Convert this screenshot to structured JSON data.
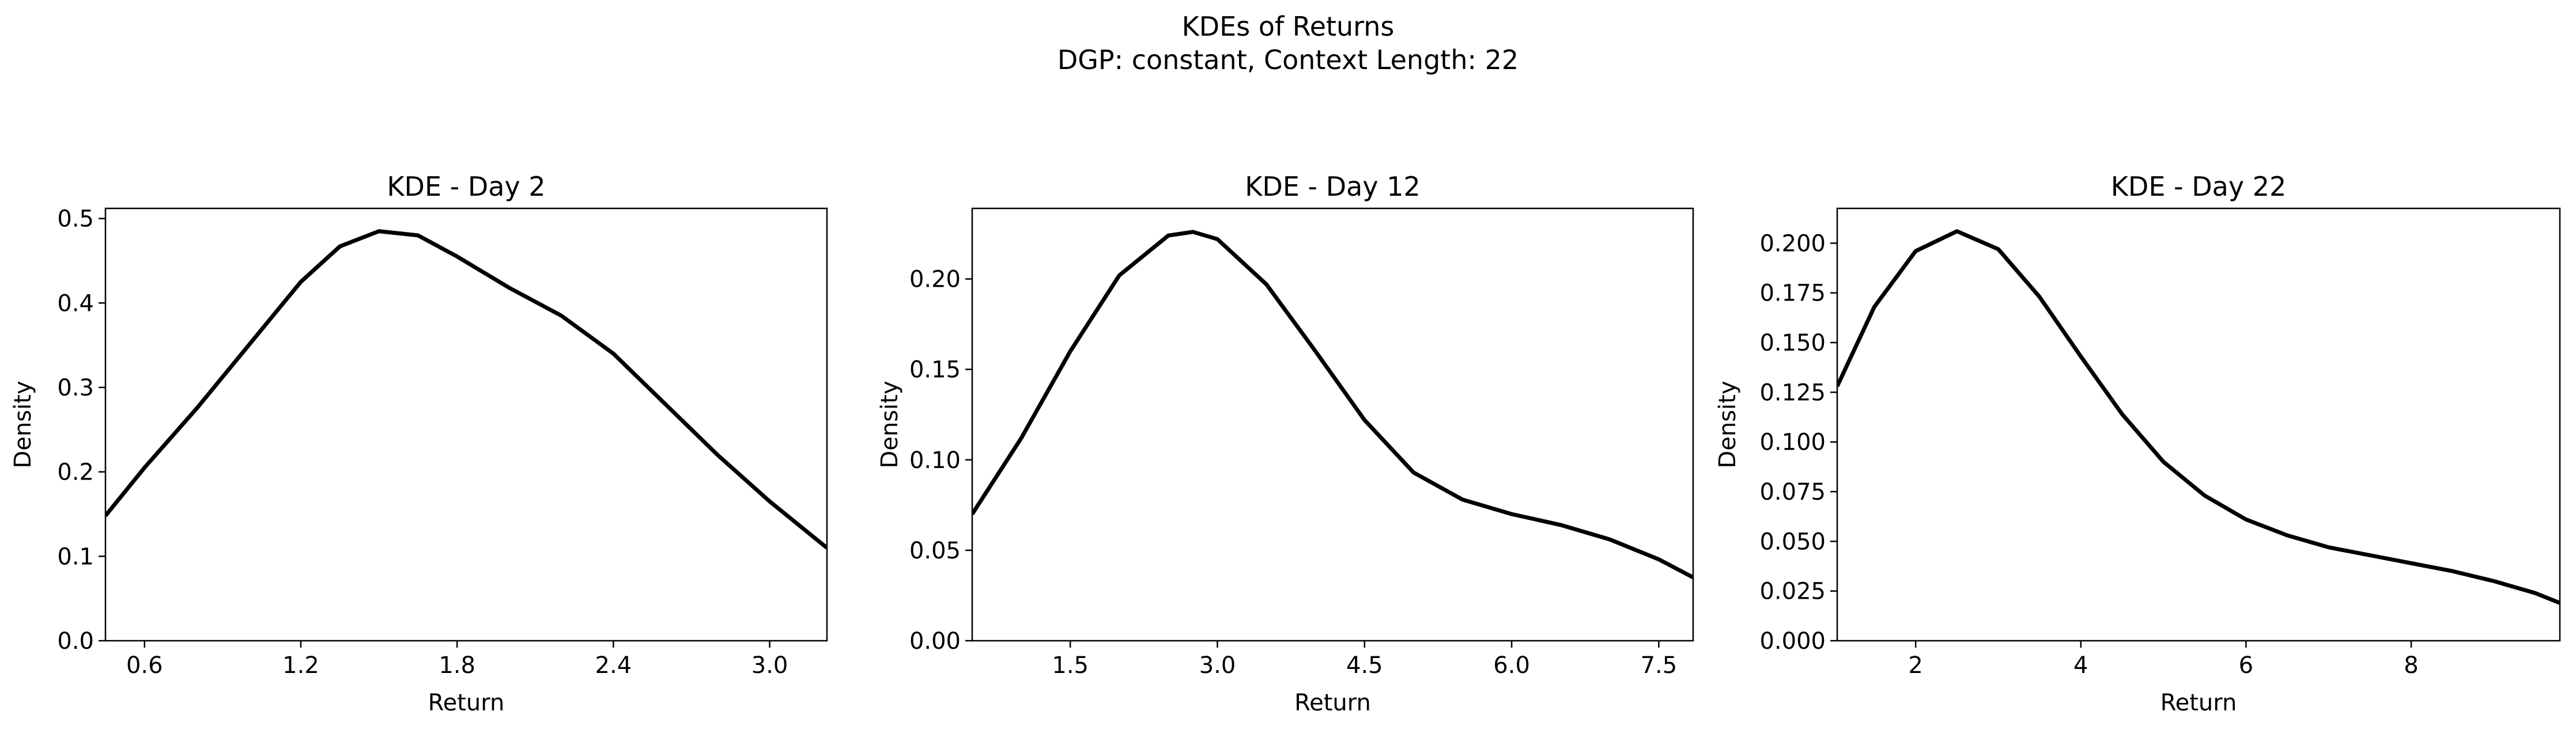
{
  "figure": {
    "title_line1": "KDEs of Returns",
    "title_line2": "DGP: constant, Context Length: 22"
  },
  "colors": {
    "line": "#000000",
    "background": "#ffffff",
    "axes": "#000000"
  },
  "chart_data": [
    {
      "type": "line",
      "title": "KDE - Day 2",
      "xlabel": "Return",
      "ylabel": "Density",
      "xlim": [
        0.45,
        3.22
      ],
      "ylim": [
        0.0,
        0.512
      ],
      "xticks": [
        0.6,
        1.2,
        1.8,
        2.4,
        3.0
      ],
      "xtick_labels": [
        "0.6",
        "1.2",
        "1.8",
        "2.4",
        "3.0"
      ],
      "yticks": [
        0.0,
        0.1,
        0.2,
        0.3,
        0.4,
        0.5
      ],
      "ytick_labels": [
        "0.0",
        "0.1",
        "0.2",
        "0.3",
        "0.4",
        "0.5"
      ],
      "grid": false,
      "series": [
        {
          "x": [
            0.45,
            0.6,
            0.8,
            1.0,
            1.2,
            1.35,
            1.5,
            1.65,
            1.8,
            2.0,
            2.2,
            2.4,
            2.6,
            2.8,
            3.0,
            3.22
          ],
          "y": [
            0.148,
            0.205,
            0.275,
            0.35,
            0.425,
            0.467,
            0.485,
            0.48,
            0.455,
            0.418,
            0.385,
            0.34,
            0.28,
            0.22,
            0.165,
            0.11
          ]
        }
      ]
    },
    {
      "type": "line",
      "title": "KDE - Day 12",
      "xlabel": "Return",
      "ylabel": "Density",
      "xlim": [
        0.5,
        7.85
      ],
      "ylim": [
        0.0,
        0.239
      ],
      "xticks": [
        1.5,
        3.0,
        4.5,
        6.0,
        7.5
      ],
      "xtick_labels": [
        "1.5",
        "3.0",
        "4.5",
        "6.0",
        "7.5"
      ],
      "yticks": [
        0.0,
        0.05,
        0.1,
        0.15,
        0.2
      ],
      "ytick_labels": [
        "0.00",
        "0.05",
        "0.10",
        "0.15",
        "0.20"
      ],
      "grid": false,
      "series": [
        {
          "x": [
            0.5,
            1.0,
            1.5,
            2.0,
            2.5,
            2.75,
            3.0,
            3.5,
            4.0,
            4.5,
            5.0,
            5.5,
            6.0,
            6.5,
            7.0,
            7.5,
            7.85
          ],
          "y": [
            0.07,
            0.112,
            0.16,
            0.202,
            0.224,
            0.226,
            0.222,
            0.197,
            0.16,
            0.122,
            0.093,
            0.078,
            0.07,
            0.064,
            0.056,
            0.045,
            0.035
          ]
        }
      ]
    },
    {
      "type": "line",
      "title": "KDE - Day 22",
      "xlabel": "Return",
      "ylabel": "Density",
      "xlim": [
        1.05,
        9.8
      ],
      "ylim": [
        0.0,
        0.2175
      ],
      "xticks": [
        2,
        4,
        6,
        8
      ],
      "xtick_labels": [
        "2",
        "4",
        "6",
        "8"
      ],
      "yticks": [
        0.0,
        0.025,
        0.05,
        0.075,
        0.1,
        0.125,
        0.15,
        0.175,
        0.2
      ],
      "ytick_labels": [
        "0.000",
        "0.025",
        "0.050",
        "0.075",
        "0.100",
        "0.125",
        "0.150",
        "0.175",
        "0.200"
      ],
      "grid": false,
      "series": [
        {
          "x": [
            1.05,
            1.5,
            2.0,
            2.5,
            3.0,
            3.5,
            4.0,
            4.5,
            5.0,
            5.5,
            6.0,
            6.5,
            7.0,
            7.5,
            8.0,
            8.5,
            9.0,
            9.5,
            9.8
          ],
          "y": [
            0.128,
            0.168,
            0.196,
            0.206,
            0.197,
            0.173,
            0.143,
            0.114,
            0.09,
            0.073,
            0.061,
            0.053,
            0.047,
            0.043,
            0.039,
            0.035,
            0.03,
            0.024,
            0.019
          ]
        }
      ]
    }
  ]
}
